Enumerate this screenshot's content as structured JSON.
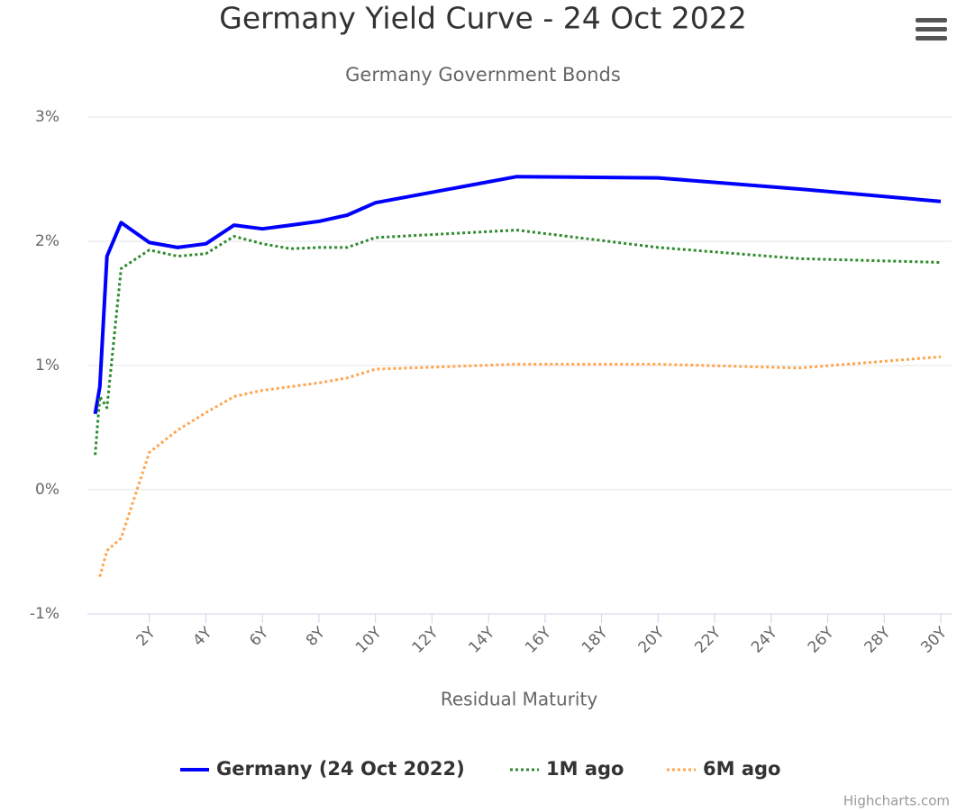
{
  "chart_data": {
    "type": "line",
    "title": "Germany Yield Curve - 24 Oct 2022",
    "subtitle": "Germany Government Bonds",
    "x_label": "Residual Maturity",
    "credits": "Highcharts.com",
    "x": [
      0.083,
      0.25,
      0.5,
      1,
      2,
      3,
      4,
      5,
      6,
      7,
      8,
      9,
      10,
      15,
      20,
      25,
      30
    ],
    "series": [
      {
        "name": "Germany (24 Oct 2022)",
        "color": "#0000ff",
        "dash": "solid",
        "values": [
          0.61,
          0.83,
          1.88,
          2.15,
          1.99,
          1.95,
          1.98,
          2.13,
          2.1,
          2.13,
          2.16,
          2.21,
          2.31,
          2.52,
          2.51,
          2.42,
          2.32
        ]
      },
      {
        "name": "1M ago",
        "color": "#2e8b2e",
        "dash": "dot",
        "values": [
          0.28,
          0.75,
          0.66,
          1.78,
          1.93,
          1.88,
          1.9,
          2.04,
          1.98,
          1.94,
          1.95,
          1.95,
          2.03,
          2.09,
          1.95,
          1.86,
          1.83
        ]
      },
      {
        "name": "6M ago",
        "color": "#ffa54f",
        "dash": "dot",
        "values": [
          null,
          -0.7,
          -0.49,
          -0.39,
          0.3,
          0.48,
          0.62,
          0.75,
          0.8,
          0.83,
          0.86,
          0.9,
          0.97,
          1.01,
          1.01,
          0.98,
          1.07
        ]
      }
    ],
    "xlim": [
      0,
      30
    ],
    "xticks": [
      {
        "value": 2,
        "label": "2Y"
      },
      {
        "value": 4,
        "label": "4Y"
      },
      {
        "value": 6,
        "label": "6Y"
      },
      {
        "value": 8,
        "label": "8Y"
      },
      {
        "value": 10,
        "label": "10Y"
      },
      {
        "value": 12,
        "label": "12Y"
      },
      {
        "value": 14,
        "label": "14Y"
      },
      {
        "value": 16,
        "label": "16Y"
      },
      {
        "value": 18,
        "label": "18Y"
      },
      {
        "value": 20,
        "label": "20Y"
      },
      {
        "value": 22,
        "label": "22Y"
      },
      {
        "value": 24,
        "label": "24Y"
      },
      {
        "value": 26,
        "label": "26Y"
      },
      {
        "value": 28,
        "label": "28Y"
      },
      {
        "value": 30,
        "label": "30Y"
      }
    ],
    "ylim": [
      -1,
      3
    ],
    "yticks": [
      {
        "value": -1,
        "label": "-1%"
      },
      {
        "value": 0,
        "label": "0%"
      },
      {
        "value": 1,
        "label": "1%"
      },
      {
        "value": 2,
        "label": "2%"
      },
      {
        "value": 3,
        "label": "3%"
      }
    ],
    "grid": true,
    "legend": "bottom"
  }
}
